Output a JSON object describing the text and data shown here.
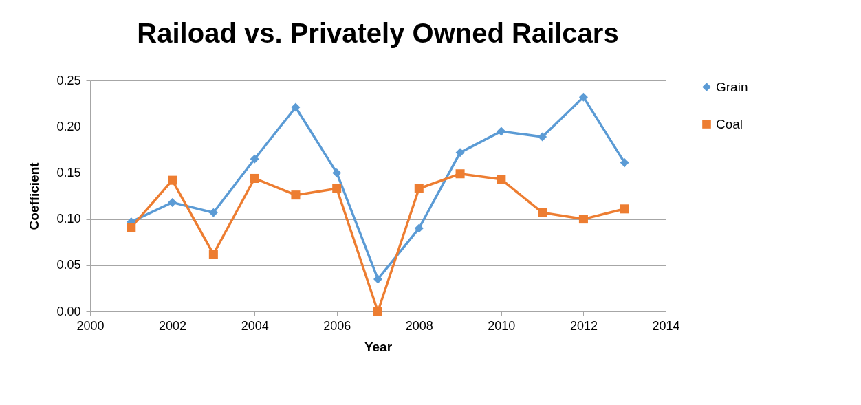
{
  "chart_data": {
    "type": "line",
    "title": "Raiload vs. Privately Owned Railcars",
    "xlabel": "Year",
    "ylabel": "Coefficient",
    "x": [
      2001,
      2002,
      2003,
      2004,
      2005,
      2006,
      2007,
      2008,
      2009,
      2010,
      2011,
      2012,
      2013
    ],
    "series": [
      {
        "name": "Grain",
        "color": "#5b9bd5",
        "marker": "diamond",
        "values": [
          0.097,
          0.118,
          0.107,
          0.165,
          0.221,
          0.15,
          0.035,
          0.09,
          0.172,
          0.195,
          0.189,
          0.232,
          0.161
        ]
      },
      {
        "name": "Coal",
        "color": "#ed7d31",
        "marker": "square",
        "values": [
          0.091,
          0.142,
          0.062,
          0.144,
          0.126,
          0.133,
          0.0,
          0.133,
          0.149,
          0.143,
          0.107,
          0.1,
          0.111
        ]
      }
    ],
    "xlim": [
      2000,
      2014
    ],
    "xticks": [
      2000,
      2002,
      2004,
      2006,
      2008,
      2010,
      2012,
      2014
    ],
    "ylim": [
      0,
      0.25
    ],
    "yticks": [
      {
        "value": 0,
        "label": "0.00"
      },
      {
        "value": 0.05,
        "label": "0.05"
      },
      {
        "value": 0.1,
        "label": "0.10"
      },
      {
        "value": 0.15,
        "label": "0.15"
      },
      {
        "value": 0.2,
        "label": "0.20"
      },
      {
        "value": 0.25,
        "label": "0.25"
      }
    ],
    "grid": "y",
    "legend": "right",
    "line_style": "solid"
  }
}
